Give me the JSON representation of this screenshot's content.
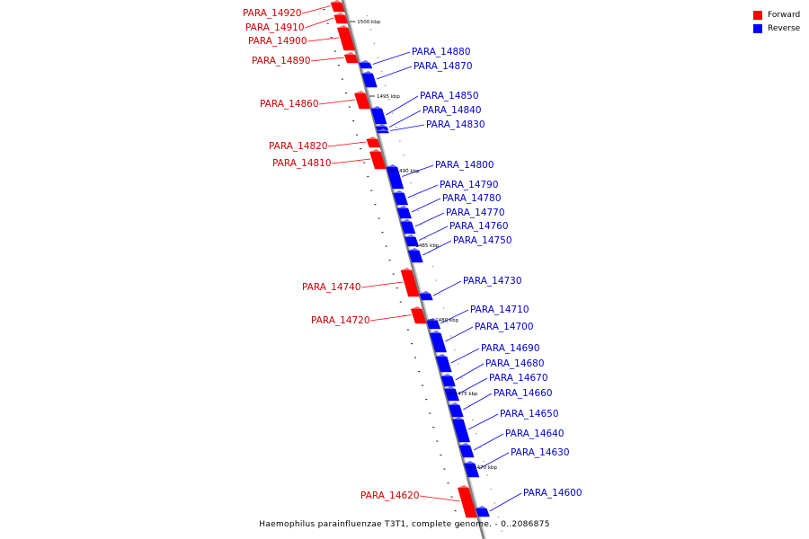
{
  "colors": {
    "forward": "#ff0000",
    "reverse": "#0000ff",
    "backbone": "#808080",
    "forward_label": "#cc0000",
    "reverse_label": "#0000cc"
  },
  "legend": {
    "forward_label": "Forward",
    "reverse_label": "Reverse"
  },
  "caption": "Haemophilus parainfluenzae T3T1, complete genome. - 0..2086875",
  "ticks": [
    "1500 kbp",
    "1495 kbp",
    "1490 kbp",
    "1485 kbp",
    "1480 kbp",
    "1475 kbp",
    "1470 kbp"
  ],
  "genes": [
    {
      "label": "PARA_14920",
      "strand": "forward"
    },
    {
      "label": "PARA_14910",
      "strand": "forward"
    },
    {
      "label": "PARA_14900",
      "strand": "forward"
    },
    {
      "label": "PARA_14890",
      "strand": "forward"
    },
    {
      "label": "PARA_14880",
      "strand": "reverse"
    },
    {
      "label": "PARA_14870",
      "strand": "reverse"
    },
    {
      "label": "PARA_14860",
      "strand": "forward"
    },
    {
      "label": "PARA_14850",
      "strand": "reverse"
    },
    {
      "label": "PARA_14840",
      "strand": "reverse"
    },
    {
      "label": "PARA_14830",
      "strand": "reverse"
    },
    {
      "label": "PARA_14820",
      "strand": "forward"
    },
    {
      "label": "PARA_14810",
      "strand": "forward"
    },
    {
      "label": "PARA_14800",
      "strand": "reverse"
    },
    {
      "label": "PARA_14790",
      "strand": "reverse"
    },
    {
      "label": "PARA_14780",
      "strand": "reverse"
    },
    {
      "label": "PARA_14770",
      "strand": "reverse"
    },
    {
      "label": "PARA_14760",
      "strand": "reverse"
    },
    {
      "label": "PARA_14750",
      "strand": "reverse"
    },
    {
      "label": "PARA_14740",
      "strand": "forward"
    },
    {
      "label": "PARA_14730",
      "strand": "reverse"
    },
    {
      "label": "PARA_14720",
      "strand": "forward"
    },
    {
      "label": "PARA_14710",
      "strand": "reverse"
    },
    {
      "label": "PARA_14700",
      "strand": "reverse"
    },
    {
      "label": "PARA_14690",
      "strand": "reverse"
    },
    {
      "label": "PARA_14680",
      "strand": "reverse"
    },
    {
      "label": "PARA_14670",
      "strand": "reverse"
    },
    {
      "label": "PARA_14660",
      "strand": "reverse"
    },
    {
      "label": "PARA_14650",
      "strand": "reverse"
    },
    {
      "label": "PARA_14640",
      "strand": "reverse"
    },
    {
      "label": "PARA_14630",
      "strand": "reverse"
    },
    {
      "label": "PARA_14620",
      "strand": "forward"
    },
    {
      "label": "PARA_14600",
      "strand": "reverse"
    }
  ]
}
